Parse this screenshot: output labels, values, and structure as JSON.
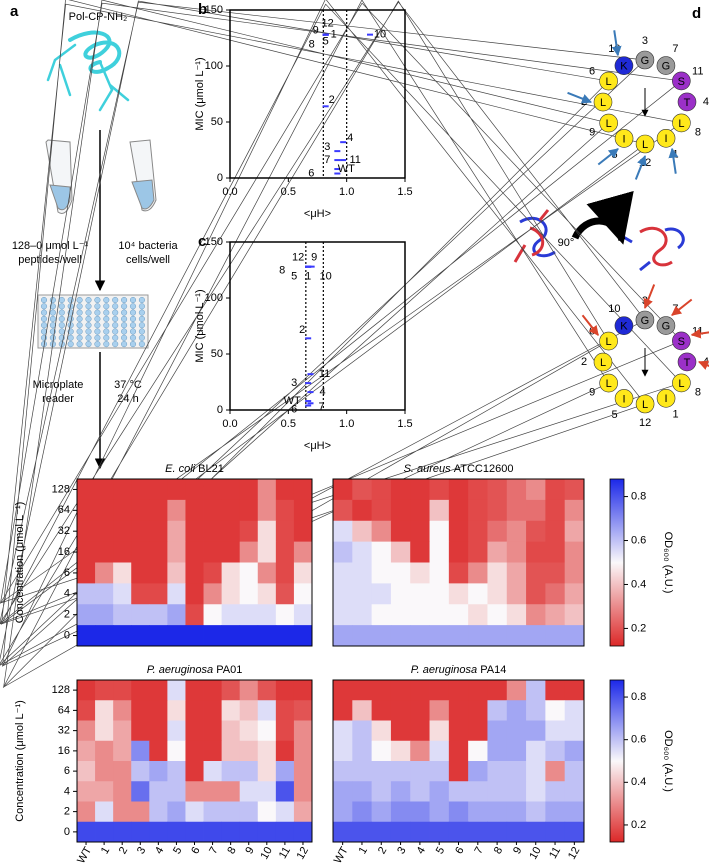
{
  "panel_a": {
    "panel_label": "a",
    "peptide": "Pol-CP-NH₂",
    "left_tube_lines": [
      "128–0 μmol L⁻¹",
      "peptides/well"
    ],
    "right_tube_lines": [
      "10⁴ bacteria",
      "cells/well"
    ],
    "reader_lines": [
      "Microplate",
      "reader"
    ],
    "condition_lines": [
      "37 °C",
      "24 h"
    ]
  },
  "panel_d": {
    "panel_label": "d",
    "rotation": "90°",
    "wheels": [
      [
        {
          "aa": "G",
          "num": "3"
        },
        {
          "aa": "G",
          "num": "7"
        },
        {
          "aa": "S",
          "num": "11"
        },
        {
          "aa": "T",
          "num": "4"
        },
        {
          "aa": "L",
          "num": "8"
        },
        {
          "aa": "I",
          "num": "1"
        },
        {
          "aa": "L",
          "num": "12"
        },
        {
          "aa": "I",
          "num": "5"
        },
        {
          "aa": "L",
          "num": "9"
        },
        {
          "aa": "L",
          "num": "2"
        },
        {
          "aa": "L",
          "num": "6"
        },
        {
          "aa": "K",
          "num": "10"
        }
      ],
      [
        {
          "aa": "G",
          "num": "3"
        },
        {
          "aa": "G",
          "num": "7"
        },
        {
          "aa": "S",
          "num": "11"
        },
        {
          "aa": "T",
          "num": "4"
        },
        {
          "aa": "L",
          "num": "8"
        },
        {
          "aa": "I",
          "num": "1"
        },
        {
          "aa": "L",
          "num": "12"
        },
        {
          "aa": "I",
          "num": "5"
        },
        {
          "aa": "L",
          "num": "9"
        },
        {
          "aa": "L",
          "num": "2"
        },
        {
          "aa": "L",
          "num": "6"
        },
        {
          "aa": "K",
          "num": "10"
        }
      ]
    ]
  },
  "chart_data": [
    {
      "type": "scatter",
      "panel_label": "b",
      "xlabel": "<μH>",
      "ylabel": "MIC (μmol L⁻¹)",
      "color": "#3a3aff",
      "xlim": [
        0,
        1.5
      ],
      "xticks": [
        {
          "value": 0,
          "label": "0.0"
        },
        0.5,
        {
          "value": 1,
          "label": "1.0"
        },
        1.5
      ],
      "ylim": [
        0,
        150
      ],
      "yticks": [
        0,
        50,
        100,
        150
      ],
      "vlines": [
        0.8,
        1.0
      ],
      "point_labels": [
        "WT",
        "1",
        "2",
        "3",
        "4",
        "5",
        "6",
        "7",
        "8",
        "9",
        "10",
        "11",
        "12"
      ],
      "x": [
        0.92,
        0.82,
        0.82,
        0.92,
        0.97,
        0.82,
        0.92,
        0.92,
        0.82,
        0.82,
        1.2,
        0.97,
        0.82
      ],
      "y": [
        8,
        128,
        64,
        24,
        32,
        128,
        4,
        16,
        128,
        128,
        128,
        16,
        128
      ]
    },
    {
      "type": "scatter",
      "panel_label": "c",
      "xlabel": "<μH>",
      "ylabel": "MIC (μmol L⁻¹)",
      "color": "#3a3aff",
      "xlim": [
        0,
        1.5
      ],
      "xticks": [
        {
          "value": 0,
          "label": "0.0"
        },
        0.5,
        {
          "value": 1,
          "label": "1.0"
        },
        1.5
      ],
      "ylim": [
        0,
        150
      ],
      "yticks": [
        0,
        50,
        100,
        150
      ],
      "vlines": [
        0.65,
        0.8
      ],
      "point_labels": [
        "WT",
        "1",
        "2",
        "3",
        "4",
        "5",
        "6",
        "7",
        "8",
        "9",
        "10",
        "11",
        "12"
      ],
      "x": [
        0.67,
        0.67,
        0.67,
        0.67,
        0.69,
        0.67,
        0.67,
        0.69,
        0.67,
        0.67,
        0.7,
        0.69,
        0.67
      ],
      "y": [
        8,
        128,
        64,
        24,
        16,
        128,
        4,
        6,
        128,
        128,
        128,
        32,
        128
      ]
    },
    {
      "type": "heatmap",
      "organism": "E. coli",
      "strain": "BL21",
      "ylabel": "Concentration (μmol L⁻¹)",
      "ycategories": [
        "128",
        "64",
        "32",
        "16",
        "6",
        "4",
        "2",
        "0"
      ],
      "zlim": [
        0.12,
        0.88
      ],
      "values": [
        [
          0.15,
          0.15,
          0.15,
          0.15,
          0.15,
          0.15,
          0.15,
          0.15,
          0.15,
          0.15,
          0.3,
          0.15,
          0.15
        ],
        [
          0.15,
          0.15,
          0.15,
          0.15,
          0.15,
          0.3,
          0.15,
          0.15,
          0.15,
          0.15,
          0.3,
          0.18,
          0.15
        ],
        [
          0.15,
          0.15,
          0.15,
          0.15,
          0.15,
          0.35,
          0.15,
          0.15,
          0.15,
          0.18,
          0.45,
          0.18,
          0.15
        ],
        [
          0.15,
          0.15,
          0.15,
          0.15,
          0.15,
          0.35,
          0.15,
          0.15,
          0.15,
          0.3,
          0.45,
          0.18,
          0.3
        ],
        [
          0.15,
          0.3,
          0.45,
          0.15,
          0.15,
          0.4,
          0.15,
          0.18,
          0.45,
          0.5,
          0.3,
          0.18,
          0.45
        ],
        [
          0.6,
          0.6,
          0.55,
          0.18,
          0.18,
          0.55,
          0.15,
          0.3,
          0.45,
          0.5,
          0.45,
          0.2,
          0.5
        ],
        [
          0.65,
          0.65,
          0.6,
          0.6,
          0.6,
          0.65,
          0.18,
          0.5,
          0.55,
          0.55,
          0.55,
          0.5,
          0.55
        ],
        [
          0.88,
          0.88,
          0.88,
          0.88,
          0.88,
          0.88,
          0.88,
          0.88,
          0.88,
          0.88,
          0.88,
          0.88,
          0.88
        ]
      ]
    },
    {
      "type": "heatmap",
      "organism": "S. aureus",
      "strain": "ATCC12600",
      "zlim": [
        0.12,
        0.88
      ],
      "zticks": [
        0.2,
        0.4,
        0.6,
        0.8
      ],
      "zlabel": "OD₆₀₀ (A.U.)",
      "values": [
        [
          0.15,
          0.2,
          0.18,
          0.15,
          0.15,
          0.18,
          0.15,
          0.18,
          0.2,
          0.25,
          0.3,
          0.18,
          0.2
        ],
        [
          0.2,
          0.15,
          0.18,
          0.15,
          0.15,
          0.4,
          0.15,
          0.18,
          0.2,
          0.25,
          0.25,
          0.18,
          0.3
        ],
        [
          0.55,
          0.4,
          0.3,
          0.15,
          0.15,
          0.5,
          0.15,
          0.18,
          0.25,
          0.3,
          0.2,
          0.18,
          0.35
        ],
        [
          0.6,
          0.55,
          0.5,
          0.4,
          0.15,
          0.5,
          0.15,
          0.18,
          0.35,
          0.3,
          0.18,
          0.18,
          0.3
        ],
        [
          0.55,
          0.55,
          0.5,
          0.5,
          0.45,
          0.5,
          0.18,
          0.3,
          0.45,
          0.35,
          0.2,
          0.2,
          0.3
        ],
        [
          0.55,
          0.55,
          0.55,
          0.5,
          0.5,
          0.5,
          0.45,
          0.5,
          0.45,
          0.35,
          0.2,
          0.25,
          0.35
        ],
        [
          0.55,
          0.55,
          0.5,
          0.5,
          0.5,
          0.5,
          0.5,
          0.45,
          0.5,
          0.45,
          0.3,
          0.35,
          0.4
        ],
        [
          0.65,
          0.65,
          0.65,
          0.65,
          0.65,
          0.65,
          0.65,
          0.65,
          0.65,
          0.65,
          0.65,
          0.65,
          0.65
        ]
      ]
    },
    {
      "type": "heatmap",
      "organism": "P. aeruginosa",
      "strain": "PA01",
      "ylabel": "Concentration (μmol L⁻¹)",
      "ycategories": [
        "128",
        "64",
        "32",
        "16",
        "6",
        "4",
        "2",
        "0"
      ],
      "xcategories": [
        "WT",
        "1",
        "2",
        "3",
        "4",
        "5",
        "6",
        "7",
        "8",
        "9",
        "10",
        "11",
        "12"
      ],
      "zlim": [
        0.12,
        0.88
      ],
      "values": [
        [
          0.15,
          0.18,
          0.18,
          0.15,
          0.15,
          0.55,
          0.15,
          0.15,
          0.2,
          0.3,
          0.2,
          0.15,
          0.15
        ],
        [
          0.18,
          0.45,
          0.3,
          0.15,
          0.15,
          0.45,
          0.15,
          0.15,
          0.45,
          0.4,
          0.55,
          0.18,
          0.2
        ],
        [
          0.3,
          0.45,
          0.35,
          0.15,
          0.15,
          0.55,
          0.15,
          0.15,
          0.4,
          0.45,
          0.5,
          0.18,
          0.3
        ],
        [
          0.35,
          0.3,
          0.35,
          0.7,
          0.15,
          0.5,
          0.15,
          0.15,
          0.4,
          0.4,
          0.45,
          0.15,
          0.3
        ],
        [
          0.4,
          0.3,
          0.3,
          0.6,
          0.65,
          0.6,
          0.15,
          0.55,
          0.6,
          0.6,
          0.45,
          0.65,
          0.3
        ],
        [
          0.35,
          0.35,
          0.3,
          0.75,
          0.6,
          0.6,
          0.3,
          0.3,
          0.3,
          0.55,
          0.55,
          0.8,
          0.3
        ],
        [
          0.3,
          0.55,
          0.3,
          0.3,
          0.6,
          0.65,
          0.55,
          0.6,
          0.6,
          0.6,
          0.5,
          0.55,
          0.35
        ],
        [
          0.82,
          0.82,
          0.82,
          0.82,
          0.82,
          0.82,
          0.82,
          0.82,
          0.82,
          0.82,
          0.82,
          0.82,
          0.82
        ]
      ]
    },
    {
      "type": "heatmap",
      "organism": "P. aeruginosa",
      "strain": "PA14",
      "xcategories": [
        "WT",
        "1",
        "2",
        "3",
        "4",
        "5",
        "6",
        "7",
        "8",
        "9",
        "10",
        "11",
        "12"
      ],
      "zlim": [
        0.12,
        0.88
      ],
      "zticks": [
        0.2,
        0.4,
        0.6,
        0.8
      ],
      "zlabel": "OD₆₀₀ (A.U.)",
      "values": [
        [
          0.15,
          0.15,
          0.15,
          0.15,
          0.15,
          0.15,
          0.15,
          0.15,
          0.15,
          0.3,
          0.6,
          0.15,
          0.15
        ],
        [
          0.15,
          0.4,
          0.15,
          0.15,
          0.15,
          0.3,
          0.15,
          0.15,
          0.6,
          0.65,
          0.6,
          0.5,
          0.55
        ],
        [
          0.55,
          0.6,
          0.45,
          0.15,
          0.15,
          0.45,
          0.15,
          0.15,
          0.65,
          0.65,
          0.65,
          0.55,
          0.55
        ],
        [
          0.55,
          0.6,
          0.5,
          0.45,
          0.3,
          0.55,
          0.15,
          0.5,
          0.65,
          0.65,
          0.55,
          0.6,
          0.65
        ],
        [
          0.6,
          0.6,
          0.6,
          0.6,
          0.6,
          0.6,
          0.15,
          0.65,
          0.6,
          0.6,
          0.55,
          0.3,
          0.6
        ],
        [
          0.65,
          0.65,
          0.6,
          0.65,
          0.6,
          0.65,
          0.6,
          0.6,
          0.6,
          0.6,
          0.55,
          0.6,
          0.6
        ],
        [
          0.65,
          0.7,
          0.65,
          0.7,
          0.7,
          0.65,
          0.7,
          0.65,
          0.65,
          0.65,
          0.6,
          0.65,
          0.65
        ],
        [
          0.8,
          0.8,
          0.8,
          0.8,
          0.8,
          0.8,
          0.8,
          0.8,
          0.8,
          0.8,
          0.8,
          0.8,
          0.8
        ]
      ]
    }
  ]
}
